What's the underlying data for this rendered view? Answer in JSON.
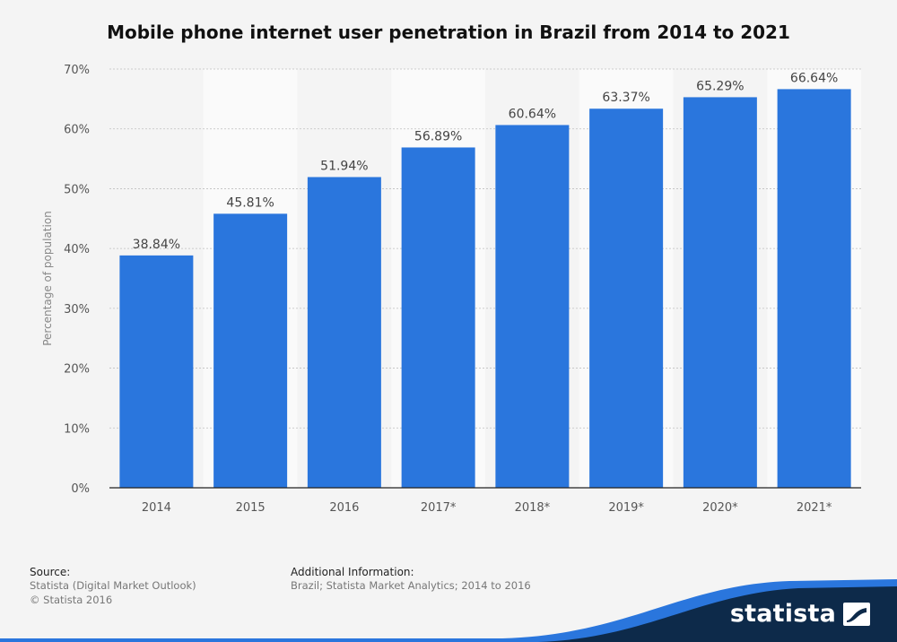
{
  "chart_data": {
    "type": "bar",
    "title": "Mobile phone internet user penetration in Brazil from 2014 to 2021",
    "ylabel": "Percentage of population",
    "xlabel": "",
    "categories": [
      "2014",
      "2015",
      "2016",
      "2017*",
      "2018*",
      "2019*",
      "2020*",
      "2021*"
    ],
    "values": [
      38.84,
      45.81,
      51.94,
      56.89,
      60.64,
      63.37,
      65.29,
      66.64
    ],
    "data_labels": [
      "38.84%",
      "45.81%",
      "51.94%",
      "56.89%",
      "60.64%",
      "63.37%",
      "65.29%",
      "66.64%"
    ],
    "ylim": [
      0,
      70
    ],
    "yticks": [
      0,
      10,
      20,
      30,
      40,
      50,
      60,
      70
    ],
    "ytick_labels": [
      "0%",
      "10%",
      "20%",
      "30%",
      "40%",
      "50%",
      "60%",
      "70%"
    ],
    "grid": true,
    "bar_color": "#2a76dd"
  },
  "footer": {
    "source_heading": "Source:",
    "source_line1": "Statista (Digital Market Outlook)",
    "source_line2": "© Statista 2016",
    "additional_heading": "Additional Information:",
    "additional_text": "Brazil; Statista Market Analytics; 2014 to 2016"
  },
  "brand": {
    "name": "statista",
    "logo_icon": "statista-logo-icon",
    "colors": {
      "navy": "#0d2a4a",
      "blue": "#2a76dd"
    }
  }
}
